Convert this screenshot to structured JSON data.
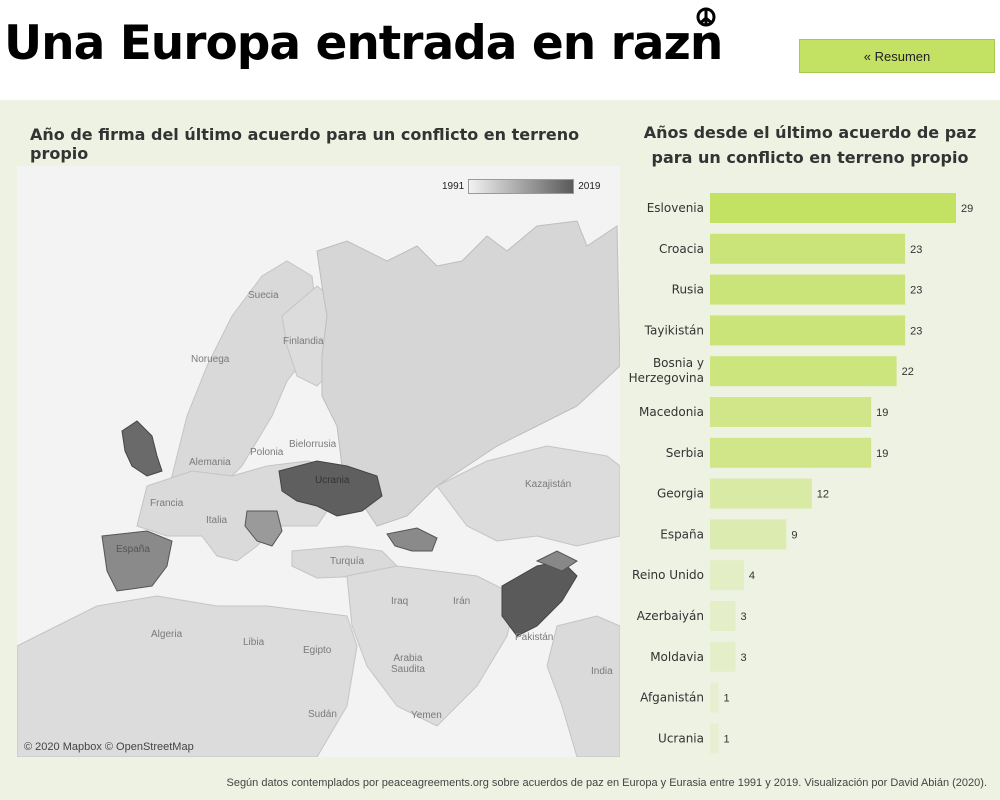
{
  "header": {
    "title_main": "Una Europa entrada en raz",
    "title_last_letter": "n",
    "peace_symbol_icon": "peace-symbol-icon",
    "summary_button_label": "« Resumen"
  },
  "map": {
    "title": "Año de firma del último acuerdo para un conflicto en terreno propio",
    "legend_min": "1991",
    "legend_max": "2019",
    "copyright": "© 2020 Mapbox © OpenStreetMap",
    "labels": {
      "suecia": "Suecia",
      "finlandia": "Finlandia",
      "noruega": "Noruega",
      "bielorrusia": "Bielorrusia",
      "polonia": "Polonia",
      "alemania": "Alemania",
      "ucrania": "Ucrania",
      "francia": "Francia",
      "italia": "Italia",
      "espana": "España",
      "turquia": "Turquía",
      "kazajistan": "Kazajistán",
      "iraq": "Iraq",
      "iran": "Irán",
      "pakistan": "Pakistán",
      "argelia": "Algeria",
      "libia": "Libia",
      "egipto": "Egipto",
      "arabia_saudita": "Arabia\nSaudita",
      "sudan": "Sudán",
      "yemen": "Yemen",
      "india": "India"
    }
  },
  "chart_data": {
    "type": "bar",
    "orientation": "horizontal",
    "title": "Años desde el último acuerdo de paz para un conflicto en terreno propio",
    "categories": [
      "Eslovenia",
      "Croacia",
      "Rusia",
      "Tayikistán",
      "Bosnia y Herzegovina",
      "Macedonia",
      "Serbia",
      "Georgia",
      "España",
      "Reino Unido",
      "Azerbaiyán",
      "Moldavia",
      "Afganistán",
      "Ucrania"
    ],
    "values": [
      29,
      23,
      23,
      23,
      22,
      19,
      19,
      12,
      9,
      4,
      3,
      3,
      1,
      1
    ],
    "xlim": [
      0,
      29
    ],
    "grid": false,
    "color_scale": [
      "#edf2e3",
      "#c3e162"
    ]
  },
  "footer": {
    "text": "Según datos contemplados por peaceagreements.org sobre acuerdos de paz en Europa y Eurasia entre 1991 y 2019. Visualización por David Abián (2020)."
  }
}
